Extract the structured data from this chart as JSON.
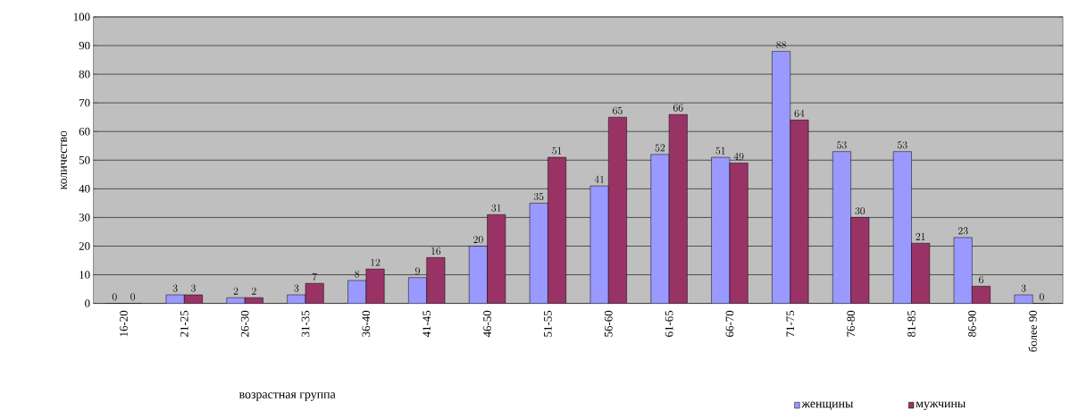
{
  "chart_data": {
    "type": "bar",
    "xlabel": "возрастная группа",
    "ylabel": "количество",
    "categories": [
      "16-20",
      "21-25",
      "26-30",
      "31-35",
      "36-40",
      "41-45",
      "46-50",
      "51-55",
      "56-60",
      "61-65",
      "66-70",
      "71-75",
      "76-80",
      "81-85",
      "86-90",
      "более 90"
    ],
    "series": [
      {
        "name": "женщины",
        "color": "#9999ff",
        "values": [
          0,
          3,
          2,
          3,
          8,
          9,
          20,
          35,
          41,
          52,
          51,
          88,
          53,
          53,
          23,
          3
        ]
      },
      {
        "name": "мужчины",
        "color": "#993366",
        "values": [
          0,
          3,
          2,
          7,
          12,
          16,
          31,
          51,
          65,
          66,
          49,
          64,
          30,
          21,
          6,
          0
        ]
      }
    ],
    "ylim": [
      0,
      100
    ],
    "yticks": [
      0,
      10,
      20,
      30,
      40,
      50,
      60,
      70,
      80,
      90,
      100
    ],
    "grid": "y",
    "legend": "bottom",
    "data_labels": true
  }
}
